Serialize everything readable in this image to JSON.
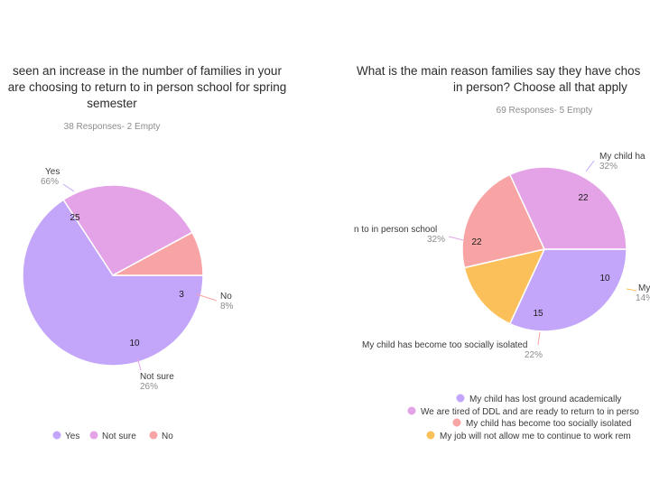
{
  "chart_data": [
    {
      "type": "pie",
      "title_lines": [
        "seen an increase in the number of families in your",
        "are choosing to return to in person school for spring",
        "semester"
      ],
      "subtitle": "38 Responses- 2 Empty",
      "slices": [
        {
          "label": "Yes",
          "value": 25,
          "percent": "66%",
          "color": "#c3a6fa"
        },
        {
          "label": "Not sure",
          "value": 10,
          "percent": "26%",
          "color": "#e3a3e6"
        },
        {
          "label": "No",
          "value": 3,
          "percent": "8%",
          "color": "#f9a4a4"
        }
      ],
      "legend": [
        "Yes",
        "Not sure",
        "No"
      ]
    },
    {
      "type": "pie",
      "title_lines": [
        "What is the main reason families say they have chos",
        "in person? Choose all that apply"
      ],
      "subtitle": "69 Responses- 5 Empty",
      "slices": [
        {
          "label": "My child ha",
          "value": 22,
          "percent": "32%",
          "color": "#c3a6fa"
        },
        {
          "label": "My",
          "value": 10,
          "percent": "14%",
          "color": "#fbc05a"
        },
        {
          "label": "My child has become too socially isolated",
          "value": 15,
          "percent": "22%",
          "color": "#f9a4a4"
        },
        {
          "label": "n to in person school",
          "value": 22,
          "percent": "32%",
          "color": "#e3a3e6"
        }
      ],
      "legend": [
        {
          "label": "My child has lost ground academically",
          "color": "#c3a6fa"
        },
        {
          "label": "We are tired of DDL and are ready to return to in perso",
          "color": "#e3a3e6"
        },
        {
          "label": "My child has become too socially isolated",
          "color": "#f9a4a4"
        },
        {
          "label": "My job will not allow me to continue to work rem",
          "color": "#fbc05a"
        }
      ]
    }
  ]
}
